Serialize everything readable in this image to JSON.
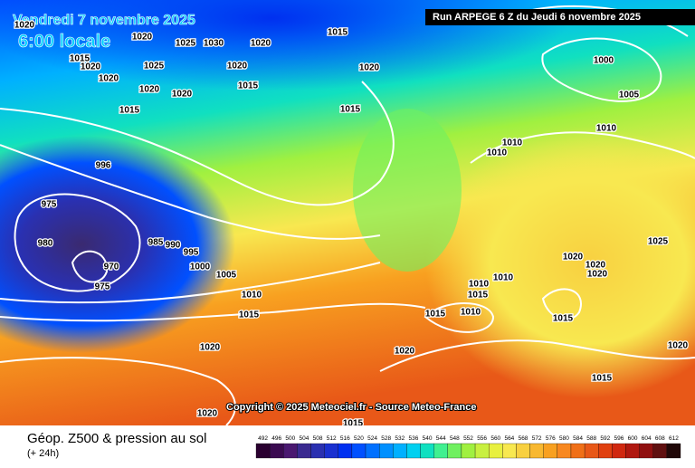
{
  "header": {
    "date": "Vendredi 7 novembre 2025",
    "time": "6:00 locale",
    "run": "Run ARPEGE 6 Z du Jeudi 6 novembre 2025"
  },
  "copyright": "Copyright © 2025 Meteociel.fr - Source Meteo-France",
  "footer": {
    "title": "Géop. Z500 & pression au sol",
    "lead": "(+ 24h)"
  },
  "isobar_labels": [
    "1020",
    "1020",
    "1025",
    "1030",
    "1020",
    "1015",
    "1015",
    "1020",
    "1025",
    "1020",
    "1020",
    "1000",
    "1020",
    "1020",
    "1020",
    "1015",
    "1005",
    "1015",
    "1015",
    "1010",
    "1010",
    "1010",
    "996",
    "975",
    "980",
    "985",
    "990",
    "995",
    "970",
    "1000",
    "1025",
    "1020",
    "1020",
    "1020",
    "1005",
    "975",
    "1010",
    "1010",
    "1015",
    "1010",
    "1015",
    "1010",
    "1015",
    "1015",
    "1020",
    "1020",
    "1020",
    "1015",
    "1020",
    "1015"
  ],
  "colorbar": {
    "labels": [
      492,
      496,
      500,
      504,
      508,
      512,
      516,
      520,
      524,
      528,
      532,
      536,
      540,
      544,
      548,
      552,
      556,
      560,
      564,
      568,
      572,
      576,
      580,
      584,
      588,
      592,
      596,
      600,
      604,
      608,
      612
    ],
    "colors": [
      "#2a0030",
      "#3a0a50",
      "#4a1870",
      "#3a2a90",
      "#2a30b0",
      "#1a30d0",
      "#0030f0",
      "#0050ff",
      "#0070ff",
      "#0090ff",
      "#00b0ff",
      "#00d0f0",
      "#10e0c0",
      "#40f090",
      "#70f060",
      "#a0f040",
      "#c8f040",
      "#e8f040",
      "#f8e850",
      "#f8d040",
      "#f8b830",
      "#f8a020",
      "#f88820",
      "#f07018",
      "#e85818",
      "#e04010",
      "#d02810",
      "#b01810",
      "#901010",
      "#601010",
      "#200808"
    ]
  }
}
